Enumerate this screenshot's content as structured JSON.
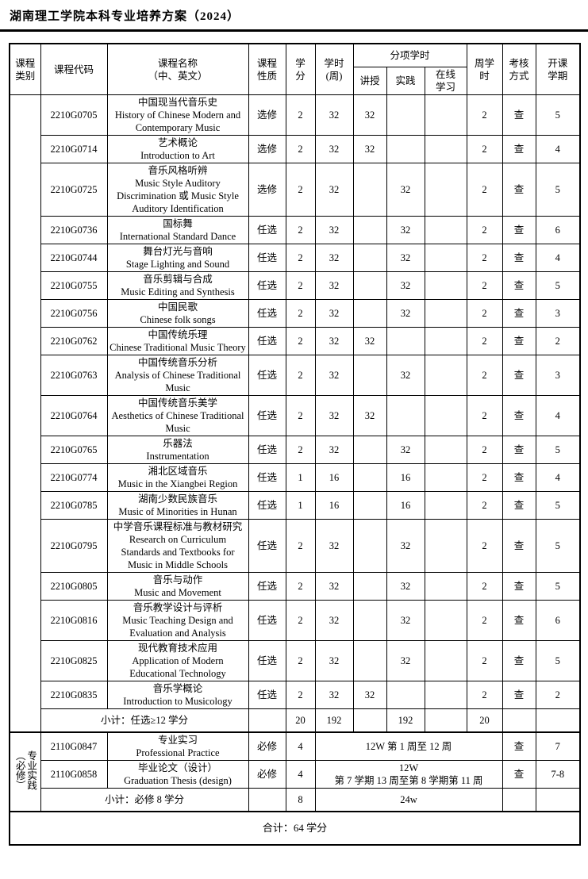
{
  "header": {
    "title": "湖南理工学院本科专业培养方案（2024）"
  },
  "table": {
    "columns": {
      "category": "课程\n类别",
      "code": "课程代码",
      "name": "课程名称\n（中、英文）",
      "nature": "课程\n性质",
      "credits": "学\n分",
      "hours": "学时\n(周)",
      "sub_hours": "分项学时",
      "lecture": "讲授",
      "practice": "实践",
      "online": "在线\n学习",
      "weekly": "周学\n时",
      "assessment": "考核\n方式",
      "term": "开课\n学期"
    },
    "courses": [
      {
        "code": "2210G0705",
        "name_zh": "中国现当代音乐史",
        "name_en": "History of Chinese Modern and Contemporary Music",
        "nature": "选修",
        "credits": "2",
        "hours": "32",
        "lecture": "32",
        "practice": "",
        "online": "",
        "weekly": "2",
        "assessment": "查",
        "term": "5"
      },
      {
        "code": "2210G0714",
        "name_zh": "艺术概论",
        "name_en": "Introduction to Art",
        "nature": "选修",
        "credits": "2",
        "hours": "32",
        "lecture": "32",
        "practice": "",
        "online": "",
        "weekly": "2",
        "assessment": "查",
        "term": "4"
      },
      {
        "code": "2210G0725",
        "name_zh": "音乐风格听辨",
        "name_en": "Music Style Auditory Discrimination 或 Music Style Auditory Identification",
        "nature": "选修",
        "credits": "2",
        "hours": "32",
        "lecture": "",
        "practice": "32",
        "online": "",
        "weekly": "2",
        "assessment": "查",
        "term": "5"
      },
      {
        "code": "2210G0736",
        "name_zh": "国标舞",
        "name_en": "International Standard Dance",
        "nature": "任选",
        "credits": "2",
        "hours": "32",
        "lecture": "",
        "practice": "32",
        "online": "",
        "weekly": "2",
        "assessment": "查",
        "term": "6"
      },
      {
        "code": "2210G0744",
        "name_zh": "舞台灯光与音响",
        "name_en": "Stage Lighting and Sound",
        "nature": "任选",
        "credits": "2",
        "hours": "32",
        "lecture": "",
        "practice": "32",
        "online": "",
        "weekly": "2",
        "assessment": "查",
        "term": "4"
      },
      {
        "code": "2210G0755",
        "name_zh": "音乐剪辑与合成",
        "name_en": "Music Editing and Synthesis",
        "nature": "任选",
        "credits": "2",
        "hours": "32",
        "lecture": "",
        "practice": "32",
        "online": "",
        "weekly": "2",
        "assessment": "查",
        "term": "5"
      },
      {
        "code": "2210G0756",
        "name_zh": "中国民歌",
        "name_en": "Chinese folk songs",
        "nature": "任选",
        "credits": "2",
        "hours": "32",
        "lecture": "",
        "practice": "32",
        "online": "",
        "weekly": "2",
        "assessment": "查",
        "term": "3"
      },
      {
        "code": "2210G0762",
        "name_zh": "中国传统乐理",
        "name_en": "Chinese Traditional Music Theory",
        "nature": "任选",
        "credits": "2",
        "hours": "32",
        "lecture": "32",
        "practice": "",
        "online": "",
        "weekly": "2",
        "assessment": "查",
        "term": "2"
      },
      {
        "code": "2210G0763",
        "name_zh": "中国传统音乐分析",
        "name_en": "Analysis of Chinese Traditional Music",
        "nature": "任选",
        "credits": "2",
        "hours": "32",
        "lecture": "",
        "practice": "32",
        "online": "",
        "weekly": "2",
        "assessment": "查",
        "term": "3"
      },
      {
        "code": "2210G0764",
        "name_zh": "中国传统音乐美学",
        "name_en": "Aesthetics of Chinese Traditional Music",
        "nature": "任选",
        "credits": "2",
        "hours": "32",
        "lecture": "32",
        "practice": "",
        "online": "",
        "weekly": "2",
        "assessment": "查",
        "term": "4"
      },
      {
        "code": "2210G0765",
        "name_zh": "乐器法",
        "name_en": "Instrumentation",
        "nature": "任选",
        "credits": "2",
        "hours": "32",
        "lecture": "",
        "practice": "32",
        "online": "",
        "weekly": "2",
        "assessment": "查",
        "term": "5"
      },
      {
        "code": "2210G0774",
        "name_zh": "湘北区域音乐",
        "name_en": "Music in the Xiangbei Region",
        "nature": "任选",
        "credits": "1",
        "hours": "16",
        "lecture": "",
        "practice": "16",
        "online": "",
        "weekly": "2",
        "assessment": "查",
        "term": "4"
      },
      {
        "code": "2210G0785",
        "name_zh": "湖南少数民族音乐",
        "name_en": "Music of Minorities in Hunan",
        "nature": "任选",
        "credits": "1",
        "hours": "16",
        "lecture": "",
        "practice": "16",
        "online": "",
        "weekly": "2",
        "assessment": "查",
        "term": "5"
      },
      {
        "code": "2210G0795",
        "name_zh": "中学音乐课程标准与教材研究",
        "name_en": "Research on Curriculum Standards and Textbooks for Music in Middle Schools",
        "nature": "任选",
        "credits": "2",
        "hours": "32",
        "lecture": "",
        "practice": "32",
        "online": "",
        "weekly": "2",
        "assessment": "查",
        "term": "5"
      },
      {
        "code": "2210G0805",
        "name_zh": "音乐与动作",
        "name_en": "Music and Movement",
        "nature": "任选",
        "credits": "2",
        "hours": "32",
        "lecture": "",
        "practice": "32",
        "online": "",
        "weekly": "2",
        "assessment": "查",
        "term": "5"
      },
      {
        "code": "2210G0816",
        "name_zh": "音乐教学设计与评析",
        "name_en": "Music Teaching Design and Evaluation and Analysis",
        "nature": "任选",
        "credits": "2",
        "hours": "32",
        "lecture": "",
        "practice": "32",
        "online": "",
        "weekly": "2",
        "assessment": "查",
        "term": "6"
      },
      {
        "code": "2210G0825",
        "name_zh": "现代教育技术应用",
        "name_en": "Application of Modern Educational Technology",
        "nature": "任选",
        "credits": "2",
        "hours": "32",
        "lecture": "",
        "practice": "32",
        "online": "",
        "weekly": "2",
        "assessment": "查",
        "term": "5"
      },
      {
        "code": "2210G0835",
        "name_zh": "音乐学概论",
        "name_en": "Introduction to Musicology",
        "nature": "任选",
        "credits": "2",
        "hours": "32",
        "lecture": "32",
        "practice": "",
        "online": "",
        "weekly": "2",
        "assessment": "查",
        "term": "2"
      }
    ],
    "subtotal_elective": {
      "label": "小计：任选≥12 学分",
      "credits": "20",
      "hours": "192",
      "practice": "192",
      "weekly": "20"
    },
    "practice_section": {
      "category": "专业实践（必修）",
      "rows": [
        {
          "code": "2110G0847",
          "name_zh": "专业实习",
          "name_en": "Professional Practice",
          "nature": "必修",
          "credits": "4",
          "schedule": "12W 第 1 周至 12 周",
          "assessment": "查",
          "term": "7"
        },
        {
          "code": "2110G0858",
          "name_zh": "毕业论文（设计）",
          "name_en": "Graduation Thesis (design)",
          "nature": "必修",
          "credits": "4",
          "schedule": "12W\n第 7 学期 13 周至第 8 学期第 11 周",
          "assessment": "查",
          "term": "7-8"
        }
      ],
      "subtotal": {
        "label": "小计：必修 8 学分",
        "credits": "8",
        "schedule": "24w"
      }
    },
    "total": "合计：64 学分"
  }
}
